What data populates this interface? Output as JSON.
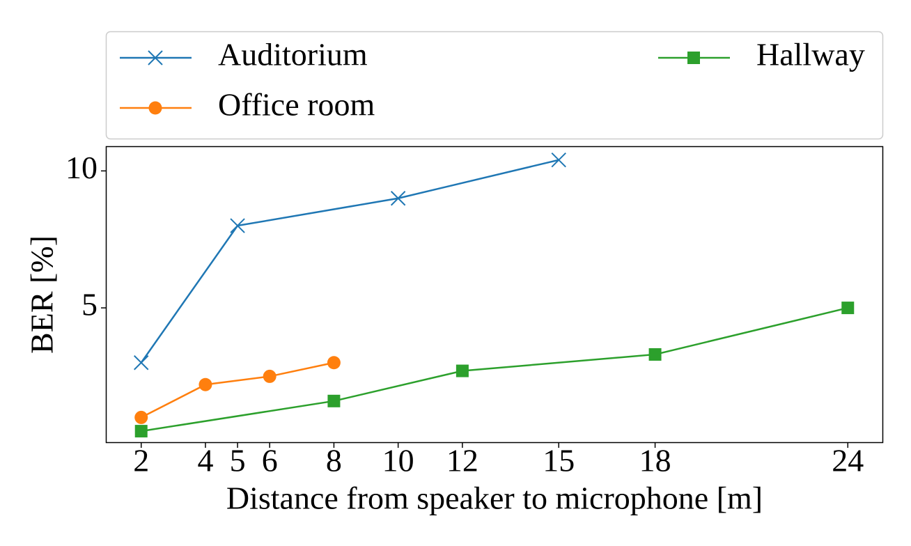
{
  "chart_data": {
    "type": "line",
    "xlabel": "Distance from speaker to microphone [m]",
    "ylabel": "BER [%]",
    "xlim": [
      0.9,
      25.1
    ],
    "ylim": [
      0.07,
      10.9
    ],
    "xticks": [
      2,
      4,
      5,
      6,
      8,
      10,
      12,
      15,
      18,
      24
    ],
    "yticks": [
      5,
      10
    ],
    "grid": false,
    "legend": "upper center",
    "series": [
      {
        "name": "Auditorium",
        "color": "#1f77b4",
        "marker": "x",
        "x": [
          2,
          5,
          10,
          15
        ],
        "values": [
          3.0,
          8.0,
          9.0,
          10.4
        ]
      },
      {
        "name": "Office room",
        "color": "#ff7f0e",
        "marker": "circle",
        "x": [
          2,
          4,
          6,
          8
        ],
        "values": [
          1.0,
          2.2,
          2.5,
          3.0
        ]
      },
      {
        "name": "Hallway",
        "color": "#2ca02c",
        "marker": "square",
        "x": [
          2,
          8,
          12,
          18,
          24
        ],
        "values": [
          0.5,
          1.6,
          2.7,
          3.3,
          5.0
        ]
      }
    ]
  }
}
